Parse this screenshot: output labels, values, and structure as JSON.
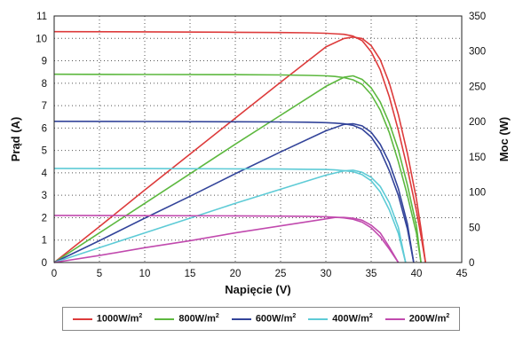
{
  "chart_data": {
    "type": "line",
    "xlabel": "Napięcie (V)",
    "ylabel": "Prąd (A)",
    "y2label": "Moc (W)",
    "xlim": [
      0,
      45
    ],
    "ylim": [
      0,
      11
    ],
    "y2lim": [
      0,
      350
    ],
    "xticks": [
      0,
      5,
      10,
      15,
      20,
      25,
      30,
      35,
      40,
      45
    ],
    "yticks": [
      0,
      1,
      2,
      3,
      4,
      5,
      6,
      7,
      8,
      9,
      10,
      11
    ],
    "y2ticks": [
      0,
      50,
      100,
      150,
      200,
      250,
      300,
      350
    ],
    "grid": true,
    "legend_position": "bottom",
    "series": [
      {
        "name": "1000W/m2",
        "color": "#dd3b3b",
        "current": {
          "x": [
            0,
            10,
            20,
            25,
            28,
            30,
            32,
            33,
            34,
            35,
            36,
            37,
            38,
            39,
            40,
            40.5,
            41
          ],
          "y": [
            10.3,
            10.29,
            10.27,
            10.26,
            10.25,
            10.23,
            10.18,
            10.1,
            9.9,
            9.4,
            8.6,
            7.4,
            5.9,
            4.2,
            2.3,
            1.2,
            0
          ]
        },
        "power": {
          "x": [
            0,
            5,
            10,
            15,
            20,
            25,
            30,
            32,
            33,
            34,
            35,
            36,
            37,
            38,
            39,
            40,
            40.5,
            41
          ],
          "y": [
            0,
            51,
            103,
            154,
            205,
            256,
            306,
            318,
            320,
            318,
            308,
            288,
            255,
            210,
            155,
            90,
            48,
            0
          ]
        }
      },
      {
        "name": "800W/m2",
        "color": "#5db83f",
        "current": {
          "x": [
            0,
            10,
            20,
            25,
            28,
            30,
            31,
            32,
            33,
            34,
            35,
            36,
            37,
            38,
            39,
            40,
            40.5
          ],
          "y": [
            8.4,
            8.39,
            8.38,
            8.37,
            8.35,
            8.33,
            8.3,
            8.25,
            8.15,
            7.95,
            7.5,
            6.8,
            5.8,
            4.5,
            3.0,
            1.3,
            0
          ]
        },
        "power": {
          "x": [
            0,
            5,
            10,
            15,
            20,
            25,
            30,
            32,
            33,
            34,
            35,
            36,
            37,
            38,
            39,
            40,
            40.5
          ],
          "y": [
            0,
            42,
            84,
            126,
            168,
            209,
            250,
            263,
            265,
            260,
            248,
            228,
            198,
            160,
            110,
            52,
            0
          ]
        }
      },
      {
        "name": "600W/m2",
        "color": "#33449a",
        "current": {
          "x": [
            0,
            10,
            20,
            25,
            28,
            30,
            31,
            32,
            33,
            34,
            35,
            36,
            37,
            38,
            39,
            39.7
          ],
          "y": [
            6.3,
            6.29,
            6.28,
            6.27,
            6.26,
            6.24,
            6.22,
            6.19,
            6.12,
            5.95,
            5.6,
            5.0,
            4.1,
            3.0,
            1.5,
            0
          ]
        },
        "power": {
          "x": [
            0,
            5,
            10,
            15,
            20,
            25,
            30,
            32,
            33,
            34,
            35,
            36,
            37,
            38,
            39,
            39.7
          ],
          "y": [
            0,
            31,
            63,
            94,
            126,
            157,
            187,
            196,
            197,
            194,
            185,
            168,
            142,
            105,
            55,
            0
          ]
        }
      },
      {
        "name": "400W/m2",
        "color": "#5ecbd6",
        "current": {
          "x": [
            0,
            10,
            20,
            25,
            28,
            30,
            31,
            32,
            33,
            34,
            35,
            36,
            37,
            38,
            38.8
          ],
          "y": [
            4.2,
            4.19,
            4.18,
            4.17,
            4.16,
            4.15,
            4.13,
            4.1,
            4.05,
            3.92,
            3.65,
            3.15,
            2.35,
            1.3,
            0
          ]
        },
        "power": {
          "x": [
            0,
            5,
            10,
            15,
            20,
            25,
            30,
            32,
            33,
            34,
            35,
            36,
            37,
            38,
            38.8
          ],
          "y": [
            0,
            21,
            42,
            63,
            84,
            104,
            124,
            130,
            131,
            128,
            121,
            108,
            85,
            50,
            0
          ]
        }
      },
      {
        "name": "200W/m2",
        "color": "#c14aae",
        "current": {
          "x": [
            0,
            10,
            20,
            25,
            28,
            30,
            31,
            32,
            33,
            34,
            35,
            36,
            37,
            38
          ],
          "y": [
            2.1,
            2.09,
            2.08,
            2.07,
            2.06,
            2.04,
            2.02,
            1.99,
            1.93,
            1.8,
            1.55,
            1.15,
            0.6,
            0
          ]
        },
        "power": {
          "x": [
            0,
            5,
            10,
            15,
            20,
            25,
            30,
            31,
            32,
            33,
            34,
            35,
            36,
            37,
            38
          ],
          "y": [
            0,
            10,
            21,
            31,
            42,
            52,
            62,
            64,
            64,
            63,
            60,
            53,
            42,
            22,
            0
          ]
        }
      }
    ]
  }
}
